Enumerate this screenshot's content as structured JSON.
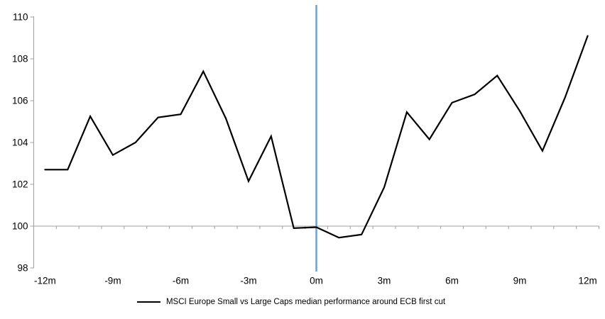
{
  "chart_data": {
    "type": "line",
    "title": "",
    "xlabel": "",
    "ylabel": "",
    "x": [
      -12,
      -11,
      -10,
      -9,
      -8,
      -7,
      -6,
      -5,
      -4,
      -3,
      -2,
      -1,
      0,
      1,
      2,
      3,
      4,
      5,
      6,
      7,
      8,
      9,
      10,
      11,
      12
    ],
    "series": [
      {
        "name": "MSCI Europe Small vs Large Caps median performance around ECB first cut",
        "color": "#000000",
        "values": [
          102.7,
          102.7,
          105.25,
          103.4,
          104.0,
          105.2,
          105.35,
          107.4,
          105.15,
          102.15,
          104.3,
          99.9,
          99.95,
          99.45,
          99.6,
          101.85,
          105.45,
          104.15,
          105.9,
          106.3,
          107.2,
          105.5,
          103.6,
          106.15,
          109.1
        ]
      }
    ],
    "x_ticks": {
      "values": [
        -12,
        -9,
        -6,
        -3,
        0,
        3,
        6,
        9,
        12
      ],
      "labels": [
        "-12m",
        "-9m",
        "-6m",
        "-3m",
        "0m",
        "3m",
        "6m",
        "9m",
        "12m"
      ]
    },
    "y_ticks": [
      98,
      100,
      102,
      104,
      106,
      108,
      110
    ],
    "ylim": [
      98,
      110
    ],
    "baseline_y": 100,
    "event_line": {
      "x": 0,
      "color": "#6FA0D0"
    },
    "axis_color": "#A0A0A0",
    "grid": false,
    "legend_position": "bottom"
  }
}
